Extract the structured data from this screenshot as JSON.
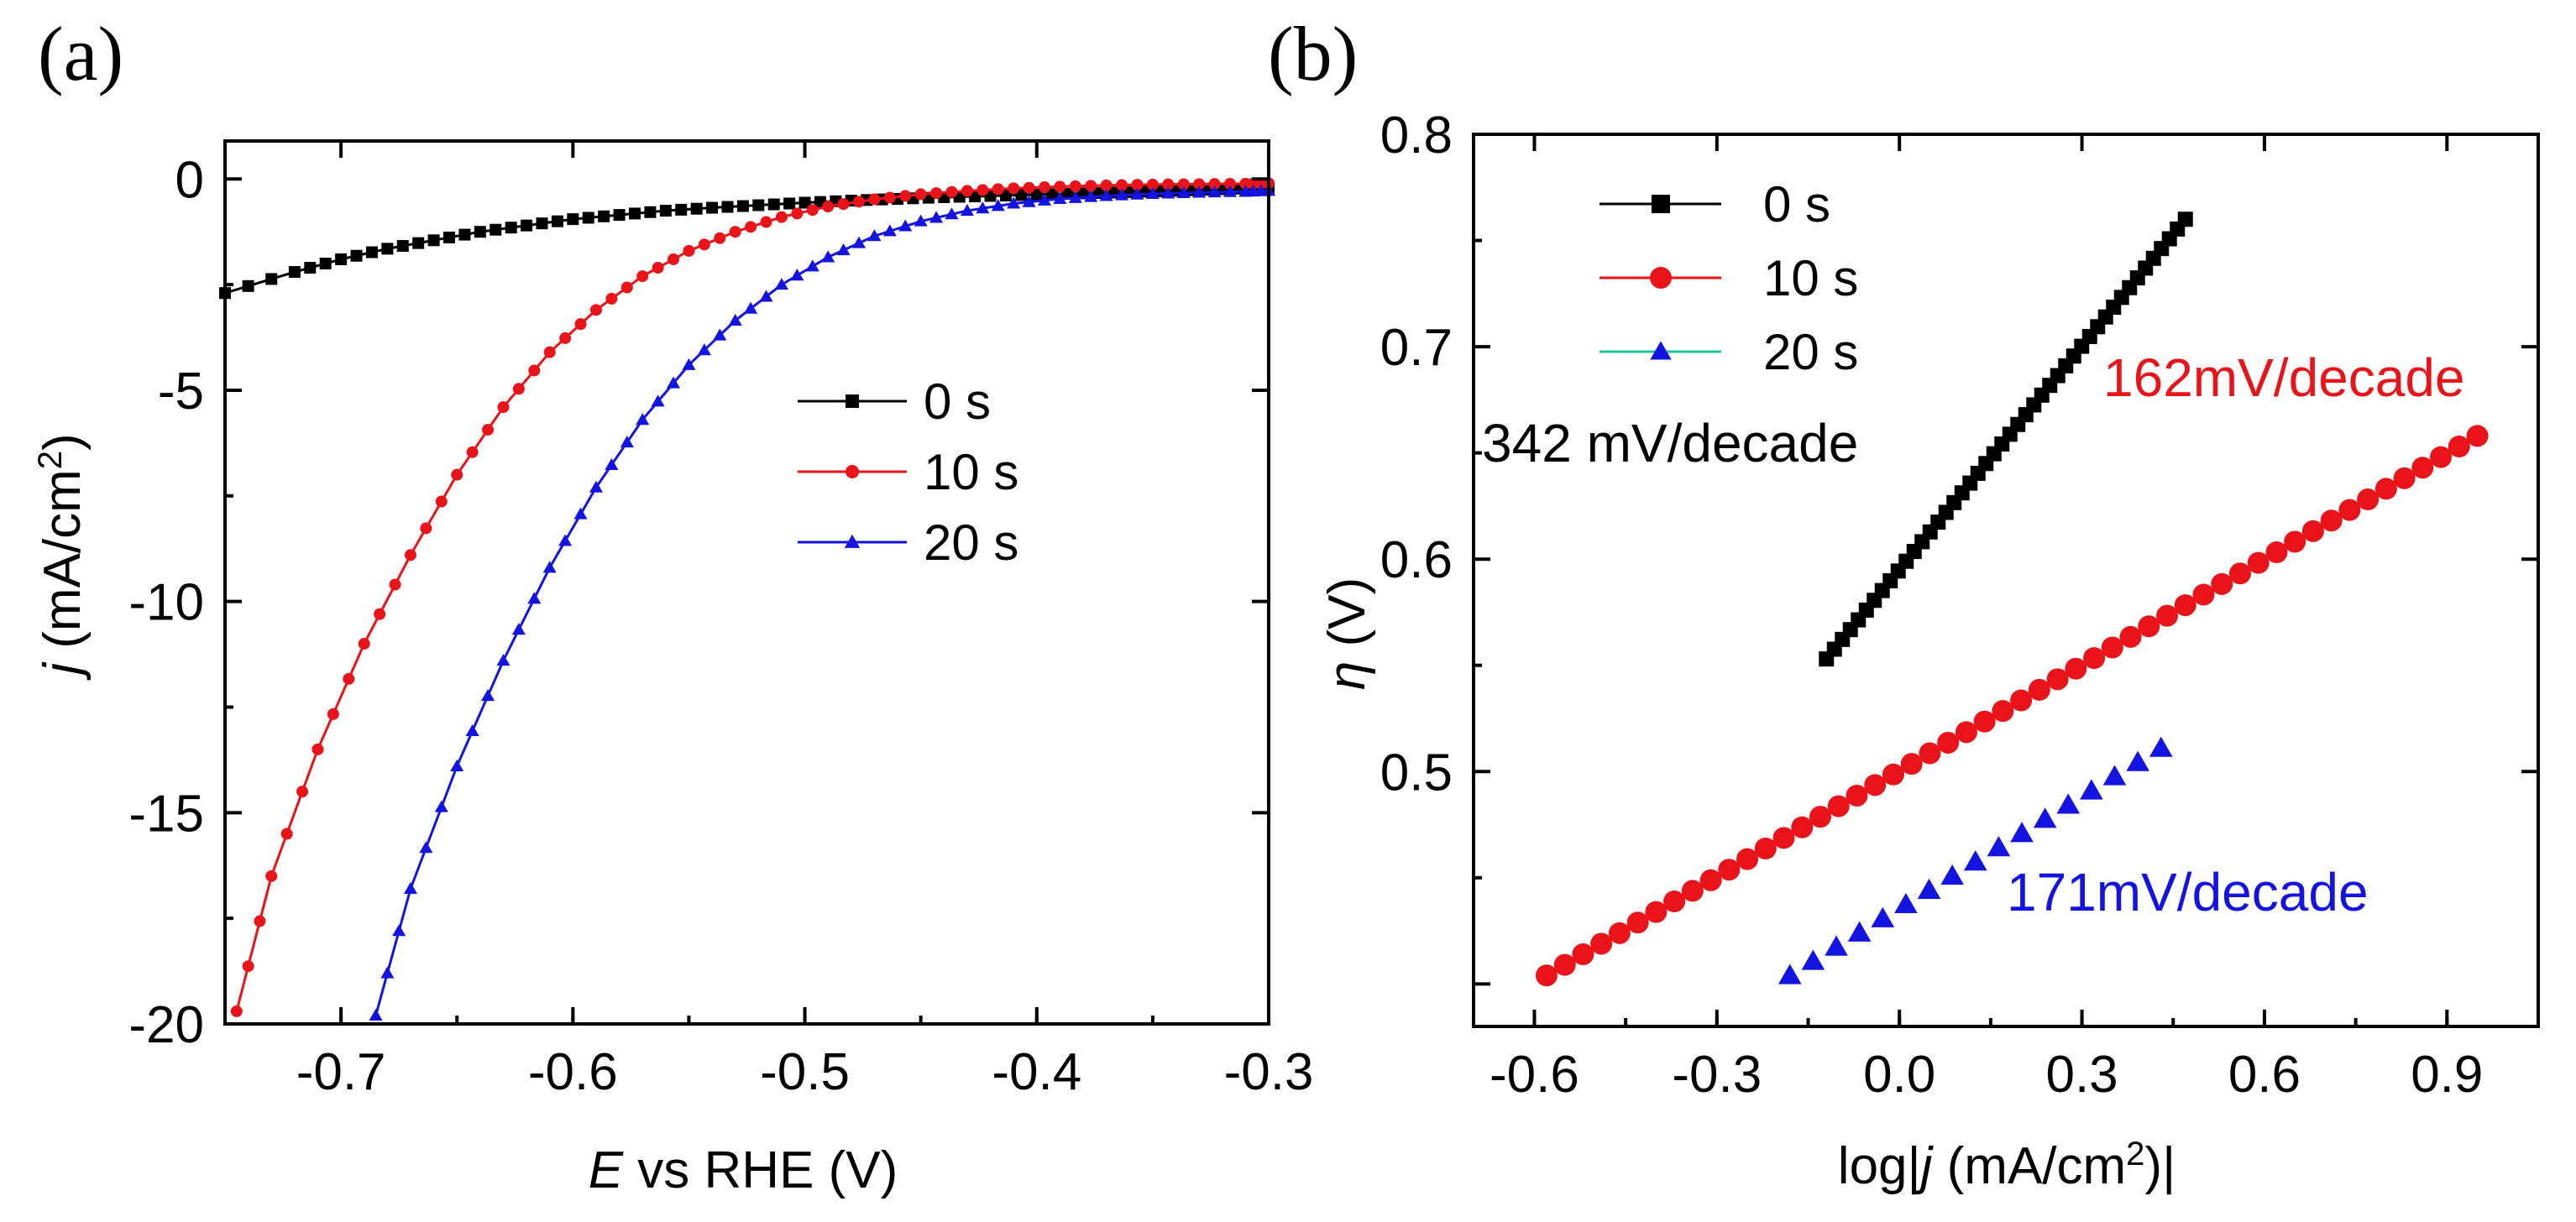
{
  "chart_data": [
    {
      "panel_label": "(a)",
      "type": "line",
      "xlabel_italic": "E",
      "xlabel_rest": " vs RHE (V)",
      "ylabel_italic": "j",
      "ylabel_rest": " (mA/cm",
      "ylabel_sup": "2",
      "ylabel_close": ")",
      "xlim": [
        -0.75,
        -0.3
      ],
      "ylim": [
        -20,
        1
      ],
      "xticks": [
        -0.7,
        -0.6,
        -0.5,
        -0.4,
        -0.3
      ],
      "xtick_labels": [
        "-0.7",
        "-0.6",
        "-0.5",
        "-0.4",
        "-0.3"
      ],
      "yticks": [
        0,
        -5,
        -10,
        -15,
        -20
      ],
      "ytick_labels": [
        "0",
        "-5",
        "-10",
        "-15",
        "-20"
      ],
      "legend_position": "center-right",
      "series": [
        {
          "name": "0 s",
          "color": "#000000",
          "marker": "square",
          "x": [
            -0.75,
            -0.72,
            -0.7,
            -0.68,
            -0.66,
            -0.64,
            -0.62,
            -0.6,
            -0.58,
            -0.56,
            -0.54,
            -0.52,
            -0.5,
            -0.48,
            -0.46,
            -0.44,
            -0.42,
            -0.4,
            -0.38,
            -0.36,
            -0.34,
            -0.32,
            -0.3
          ],
          "y": [
            -2.7,
            -2.2,
            -1.9,
            -1.65,
            -1.45,
            -1.25,
            -1.1,
            -0.95,
            -0.85,
            -0.75,
            -0.68,
            -0.62,
            -0.56,
            -0.51,
            -0.47,
            -0.43,
            -0.4,
            -0.37,
            -0.34,
            -0.31,
            -0.28,
            -0.24,
            -0.2
          ]
        },
        {
          "name": "10 s",
          "color": "#e8141a",
          "marker": "circle",
          "x": [
            -0.745,
            -0.73,
            -0.71,
            -0.69,
            -0.67,
            -0.65,
            -0.63,
            -0.61,
            -0.59,
            -0.57,
            -0.55,
            -0.53,
            -0.51,
            -0.49,
            -0.47,
            -0.45,
            -0.43,
            -0.41,
            -0.39,
            -0.37,
            -0.35,
            -0.33,
            -0.31,
            -0.3
          ],
          "y": [
            -19.7,
            -16.5,
            -13.5,
            -11.0,
            -8.9,
            -7.0,
            -5.4,
            -4.1,
            -3.1,
            -2.3,
            -1.7,
            -1.25,
            -0.9,
            -0.65,
            -0.48,
            -0.36,
            -0.28,
            -0.22,
            -0.18,
            -0.15,
            -0.13,
            -0.12,
            -0.11,
            -0.1
          ]
        },
        {
          "name": "20 s",
          "color": "#1414e0",
          "marker": "triangle",
          "x": [
            -0.685,
            -0.67,
            -0.65,
            -0.63,
            -0.61,
            -0.59,
            -0.57,
            -0.55,
            -0.53,
            -0.51,
            -0.49,
            -0.47,
            -0.45,
            -0.43,
            -0.41,
            -0.39,
            -0.37,
            -0.35,
            -0.33,
            -0.31,
            -0.3
          ],
          "y": [
            -19.8,
            -16.8,
            -13.9,
            -11.4,
            -9.2,
            -7.3,
            -5.7,
            -4.4,
            -3.35,
            -2.5,
            -1.85,
            -1.35,
            -1.0,
            -0.75,
            -0.58,
            -0.47,
            -0.4,
            -0.35,
            -0.32,
            -0.3,
            -0.28
          ]
        }
      ]
    },
    {
      "panel_label": "(b)",
      "type": "scatter",
      "xlabel_pre": "log|",
      "xlabel_italic": "j",
      "xlabel_rest": " (mA/cm",
      "xlabel_sup": "2",
      "xlabel_close": ")|",
      "ylabel_symbol": "η",
      "ylabel_rest": " (V)",
      "xlim": [
        -0.7,
        1.05
      ],
      "ylim": [
        0.38,
        0.8
      ],
      "xticks": [
        -0.6,
        -0.3,
        0.0,
        0.3,
        0.6,
        0.9
      ],
      "xtick_labels": [
        "-0.6",
        "-0.3",
        "0.0",
        "0.3",
        "0.6",
        "0.9"
      ],
      "yticks": [
        0.5,
        0.6,
        0.7,
        0.8
      ],
      "ytick_labels": [
        "0.5",
        "0.6",
        "0.7",
        "0.8"
      ],
      "legend_position": "top-left",
      "series": [
        {
          "name": "0 s",
          "color": "#000000",
          "marker": "square",
          "x_start": -0.12,
          "x_end": 0.47,
          "y_start": 0.553,
          "y_end": 0.76,
          "points": 46
        },
        {
          "name": "10 s",
          "color": "#e8141a",
          "marker": "circle",
          "x_start": -0.58,
          "x_end": 0.95,
          "y_start": 0.404,
          "y_end": 0.658,
          "points": 52
        },
        {
          "name": "20 s",
          "color": "#1414e0",
          "marker": "triangle",
          "x_start": -0.18,
          "x_end": 0.43,
          "y_start": 0.404,
          "y_end": 0.511,
          "points": 17
        }
      ],
      "annotations": [
        {
          "text": "342 mV/decade",
          "color": "#000000"
        },
        {
          "text": "162mV/decade",
          "color": "#e8141a"
        },
        {
          "text": "171mV/decade",
          "color": "#1414e0"
        }
      ]
    }
  ]
}
